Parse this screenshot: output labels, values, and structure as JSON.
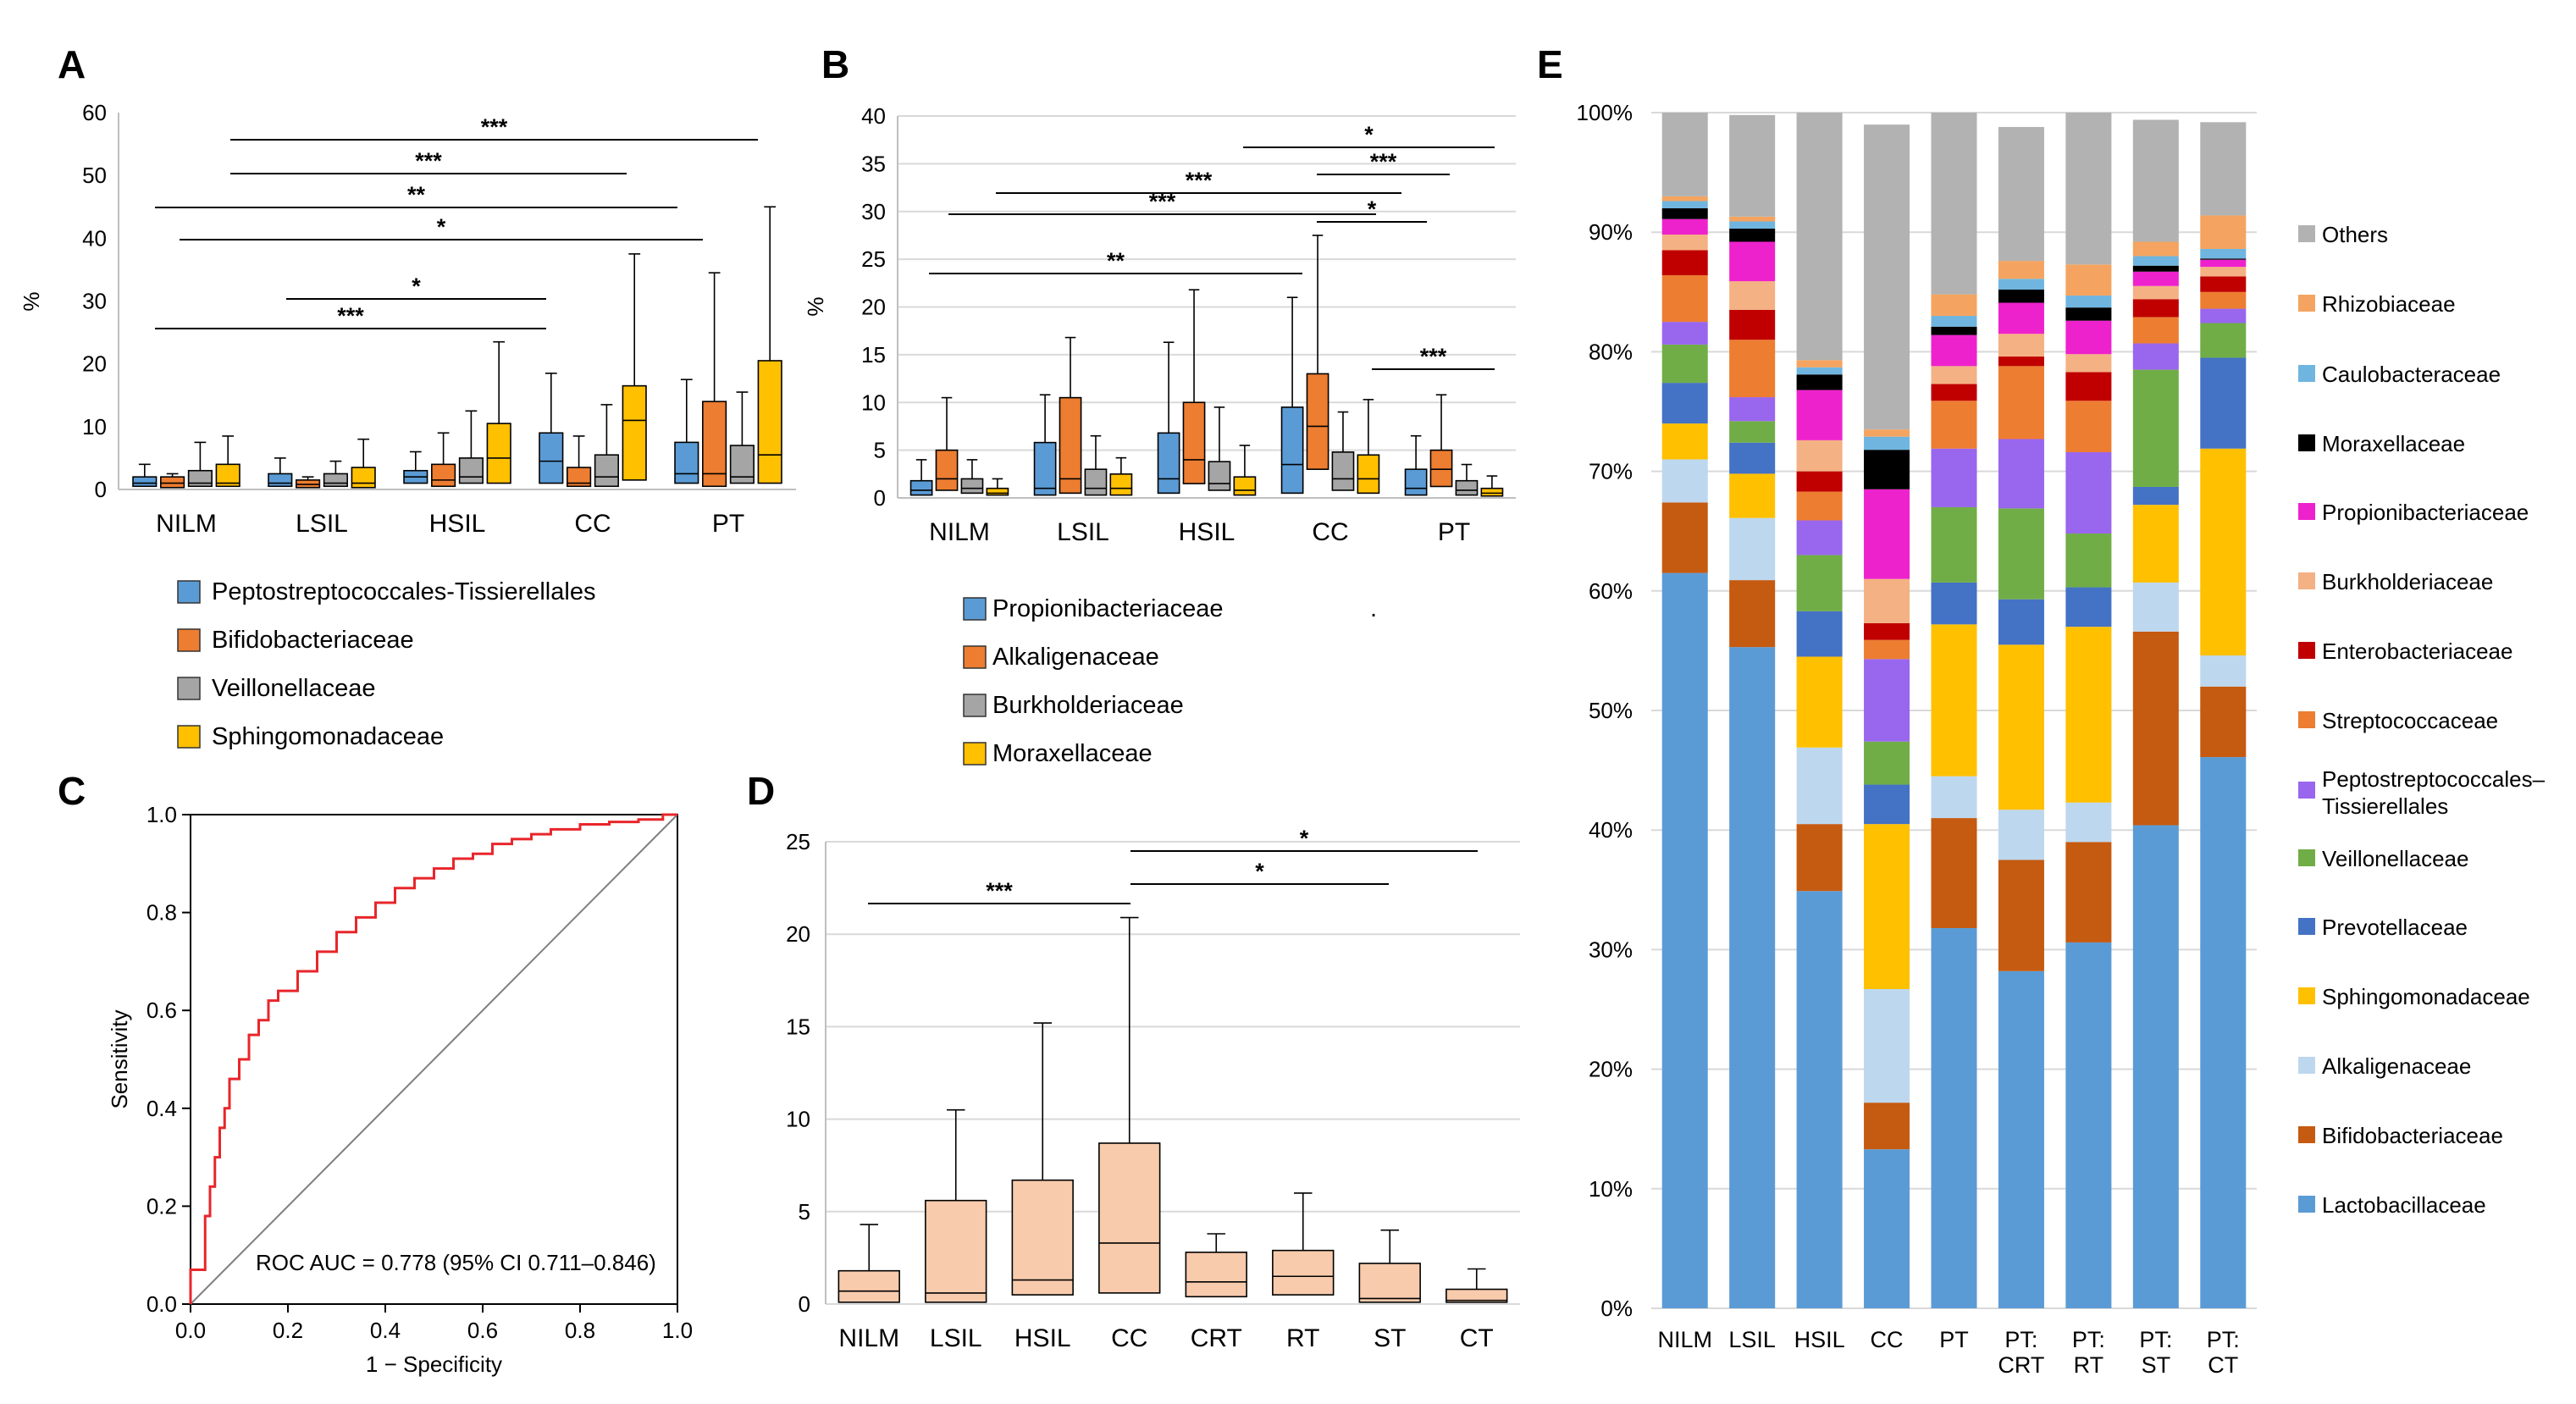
{
  "chart_data": [
    {
      "panel": "A",
      "type": "boxplot",
      "ylabel": "%",
      "ylim": [
        0,
        60
      ],
      "yticks": [
        0,
        10,
        20,
        30,
        40,
        50,
        60
      ],
      "categories": [
        "NILM",
        "LSIL",
        "HSIL",
        "CC",
        "PT"
      ],
      "series": [
        {
          "name": "Peptostreptococcales-Tissierellales",
          "color": "#5b9bd5",
          "boxes": [
            [
              0,
              0.5,
              1,
              2,
              4
            ],
            [
              0,
              0.5,
              1,
              2.5,
              5
            ],
            [
              0,
              1,
              2,
              3,
              6
            ],
            [
              0,
              1,
              4.5,
              9,
              18.5
            ],
            [
              0,
              1,
              2.5,
              7.5,
              17.5
            ]
          ]
        },
        {
          "name": "Bifidobacteriaceae",
          "color": "#ed7d31",
          "boxes": [
            [
              0,
              0.3,
              1,
              2,
              2.5
            ],
            [
              0,
              0.3,
              0.8,
              1.5,
              2
            ],
            [
              0,
              0.5,
              1.5,
              4,
              9
            ],
            [
              0,
              0.5,
              1,
              3.5,
              8.5
            ],
            [
              0,
              0.5,
              2.5,
              14,
              34.5
            ]
          ]
        },
        {
          "name": "Veillonellaceae",
          "color": "#a5a5a5",
          "boxes": [
            [
              0,
              0.5,
              1,
              3,
              7.5
            ],
            [
              0,
              0.5,
              1,
              2.5,
              4.5
            ],
            [
              0,
              1,
              2,
              5,
              12.5
            ],
            [
              0,
              0.5,
              2,
              5.5,
              13.5
            ],
            [
              0,
              1,
              2,
              7,
              15.5
            ]
          ]
        },
        {
          "name": "Sphingomonadaceae",
          "color": "#ffc000",
          "boxes": [
            [
              0,
              0.5,
              1,
              4,
              8.5
            ],
            [
              0,
              0.3,
              1,
              3.5,
              8
            ],
            [
              0,
              1,
              5,
              10.5,
              23.5
            ],
            [
              0,
              1.5,
              11,
              16.5,
              37.5
            ],
            [
              0,
              1,
              5.5,
              20.5,
              45
            ]
          ]
        }
      ],
      "significance": [
        {
          "label": "***",
          "from": "NILM",
          "to": "PT"
        },
        {
          "label": "***",
          "from": "NILM",
          "to": "CC"
        },
        {
          "label": "**",
          "from": "NILM",
          "to": "PT"
        },
        {
          "label": "*",
          "from": "NILM",
          "to": "PT"
        },
        {
          "label": "*",
          "from": "LSIL",
          "to": "CC"
        },
        {
          "label": "***",
          "from": "NILM",
          "to": "CC"
        }
      ]
    },
    {
      "panel": "B",
      "type": "boxplot",
      "ylabel": "%",
      "ylim": [
        0,
        40
      ],
      "yticks": [
        0,
        5,
        10,
        15,
        20,
        25,
        30,
        35,
        40
      ],
      "categories": [
        "NILM",
        "LSIL",
        "HSIL",
        "CC",
        "PT"
      ],
      "series": [
        {
          "name": "Propionibacteriaceae",
          "color": "#5b9bd5",
          "boxes": [
            [
              0,
              0.3,
              0.8,
              1.8,
              4
            ],
            [
              0,
              0.3,
              1,
              5.8,
              10.8
            ],
            [
              0,
              0.5,
              2,
              6.8,
              16.3
            ],
            [
              0,
              0.5,
              3.5,
              9.5,
              21
            ],
            [
              0,
              0.3,
              1,
              3,
              6.5
            ]
          ]
        },
        {
          "name": "Alkaligenaceae",
          "color": "#ed7d31",
          "boxes": [
            [
              0,
              0.8,
              2,
              5,
              10.5
            ],
            [
              0,
              0.5,
              2,
              10.5,
              16.8
            ],
            [
              0,
              1.5,
              4,
              10,
              21.8
            ],
            [
              0,
              3,
              7.5,
              13,
              27.5
            ],
            [
              0,
              1.2,
              3,
              5,
              10.8
            ]
          ]
        },
        {
          "name": "Burkholderiaceae",
          "color": "#a5a5a5",
          "boxes": [
            [
              0,
              0.5,
              1,
              2,
              4
            ],
            [
              0,
              0.3,
              1,
              3,
              6.5
            ],
            [
              0,
              0.8,
              1.5,
              3.8,
              9.5
            ],
            [
              0,
              0.8,
              2,
              4.8,
              9
            ],
            [
              0,
              0.3,
              0.8,
              1.8,
              3.5
            ]
          ]
        },
        {
          "name": "Moraxellaceae",
          "color": "#ffc000",
          "boxes": [
            [
              0,
              0.3,
              0.5,
              1,
              2
            ],
            [
              0,
              0.3,
              1,
              2.5,
              4.2
            ],
            [
              0,
              0.3,
              0.8,
              2.2,
              5.5
            ],
            [
              0,
              0.5,
              2,
              4.5,
              10.3
            ],
            [
              0,
              0.2,
              0.5,
              1,
              2.3
            ]
          ]
        }
      ],
      "significance": [
        {
          "label": "*",
          "from": "CC",
          "to": "PT"
        },
        {
          "label": "***",
          "from": "CC",
          "to": "PT"
        },
        {
          "label": "***",
          "from": "LSIL",
          "to": "CC"
        },
        {
          "label": "***",
          "from": "NILM",
          "to": "CC"
        },
        {
          "label": "*",
          "from": "CC",
          "to": "PT"
        },
        {
          "label": "**",
          "from": "NILM",
          "to": "CC"
        },
        {
          "label": "***",
          "from": "CC",
          "to": "PT"
        }
      ]
    },
    {
      "panel": "C",
      "type": "line",
      "xlabel": "1 − Specificity",
      "ylabel": "Sensitivity",
      "xlim": [
        0,
        1
      ],
      "ylim": [
        0,
        1
      ],
      "xticks": [
        "0.0",
        "0.2",
        "0.4",
        "0.6",
        "0.8",
        "1.0"
      ],
      "yticks": [
        "0.0",
        "0.2",
        "0.4",
        "0.6",
        "0.8",
        "1.0"
      ],
      "annotation": "ROC AUC = 0.778 (95% CI 0.711–0.846)",
      "series": [
        {
          "name": "ROC",
          "color": "#e8262b",
          "x": [
            0,
            0,
            0.03,
            0.03,
            0.04,
            0.04,
            0.05,
            0.05,
            0.06,
            0.06,
            0.07,
            0.07,
            0.08,
            0.08,
            0.1,
            0.1,
            0.12,
            0.12,
            0.14,
            0.14,
            0.16,
            0.16,
            0.18,
            0.18,
            0.22,
            0.22,
            0.26,
            0.26,
            0.3,
            0.3,
            0.34,
            0.34,
            0.38,
            0.38,
            0.42,
            0.42,
            0.46,
            0.46,
            0.5,
            0.5,
            0.54,
            0.54,
            0.58,
            0.58,
            0.62,
            0.62,
            0.66,
            0.66,
            0.7,
            0.7,
            0.74,
            0.74,
            0.8,
            0.8,
            0.86,
            0.86,
            0.92,
            0.92,
            0.97,
            0.97,
            1.0
          ],
          "y": [
            0,
            0.07,
            0.07,
            0.18,
            0.18,
            0.24,
            0.24,
            0.3,
            0.3,
            0.36,
            0.36,
            0.4,
            0.4,
            0.46,
            0.46,
            0.5,
            0.5,
            0.55,
            0.55,
            0.58,
            0.58,
            0.62,
            0.62,
            0.64,
            0.64,
            0.68,
            0.68,
            0.72,
            0.72,
            0.76,
            0.76,
            0.79,
            0.79,
            0.82,
            0.82,
            0.85,
            0.85,
            0.87,
            0.87,
            0.89,
            0.89,
            0.91,
            0.91,
            0.92,
            0.92,
            0.94,
            0.94,
            0.95,
            0.95,
            0.96,
            0.96,
            0.97,
            0.97,
            0.98,
            0.98,
            0.985,
            0.985,
            0.99,
            0.99,
            1.0,
            1.0
          ]
        },
        {
          "name": "Reference",
          "color": "#7f7f7f",
          "x": [
            0,
            1
          ],
          "y": [
            0,
            1
          ]
        }
      ]
    },
    {
      "panel": "D",
      "type": "boxplot",
      "ylim": [
        0,
        25
      ],
      "yticks": [
        0,
        5,
        10,
        15,
        20,
        25
      ],
      "categories": [
        "NILM",
        "LSIL",
        "HSIL",
        "CC",
        "CRT",
        "RT",
        "ST",
        "CT"
      ],
      "series": [
        {
          "name": "Moraxellaceae",
          "color": "#f8cbad",
          "boxes": [
            [
              0,
              0.1,
              0.7,
              1.8,
              4.3
            ],
            [
              0,
              0.1,
              0.6,
              5.6,
              10.5
            ],
            [
              0,
              0.5,
              1.3,
              6.7,
              15.2
            ],
            [
              0,
              0.6,
              3.3,
              8.7,
              20.9
            ],
            [
              0,
              0.4,
              1.2,
              2.8,
              3.8
            ],
            [
              0,
              0.5,
              1.5,
              2.9,
              6
            ],
            [
              0,
              0.1,
              0.3,
              2.2,
              4
            ],
            [
              0,
              0.1,
              0.2,
              0.8,
              1.9
            ]
          ]
        }
      ],
      "significance": [
        {
          "label": "***",
          "from": "NILM",
          "to": "CC"
        },
        {
          "label": "*",
          "from": "CC",
          "to": "ST"
        },
        {
          "label": "*",
          "from": "CC",
          "to": "CT"
        }
      ]
    },
    {
      "panel": "E",
      "type": "stacked_bar",
      "ylim": [
        0,
        100
      ],
      "yticks": [
        "0%",
        "10%",
        "20%",
        "30%",
        "40%",
        "50%",
        "60%",
        "70%",
        "80%",
        "90%",
        "100%"
      ],
      "categories": [
        [
          "NILM"
        ],
        [
          "LSIL"
        ],
        [
          "HSIL"
        ],
        [
          "CC"
        ],
        [
          "PT"
        ],
        [
          "PT:",
          "CRT"
        ],
        [
          "PT:",
          "RT"
        ],
        [
          "PT:",
          "ST"
        ],
        [
          "PT:",
          "CT"
        ]
      ],
      "series": [
        {
          "name": "Lactobacillaceae",
          "color": "#5b9bd5",
          "values": [
            61.5,
            55.3,
            34.9,
            13.3,
            31.8,
            28.2,
            30.6,
            40.4,
            46.1
          ]
        },
        {
          "name": "Bifidobacteriaceae",
          "color": "#c55a11",
          "values": [
            5.9,
            5.6,
            5.6,
            3.9,
            9.2,
            9.3,
            8.4,
            16.2,
            5.9
          ]
        },
        {
          "name": "Alkaligenaceae",
          "color": "#bdd7ee",
          "values": [
            3.6,
            5.2,
            6.4,
            9.5,
            3.5,
            4.2,
            3.3,
            4.1,
            2.6
          ]
        },
        {
          "name": "Sphingomonadaceae",
          "color": "#ffc000",
          "values": [
            3,
            3.7,
            7.6,
            13.8,
            12.7,
            13.8,
            14.7,
            6.5,
            17.3
          ]
        },
        {
          "name": "Prevotellaceae",
          "color": "#4472c4",
          "values": [
            3.4,
            2.6,
            3.8,
            3.3,
            3.5,
            3.8,
            3.3,
            1.5,
            7.6
          ]
        },
        {
          "name": "Veillonellaceae",
          "color": "#70ad47",
          "values": [
            3.2,
            1.8,
            4.7,
            3.6,
            6.3,
            7.6,
            4.5,
            9.8,
            2.9
          ]
        },
        {
          "name": "Peptostreptococcales–Tissierellales",
          "color": "#9966ee",
          "values": [
            1.9,
            2,
            2.9,
            6.9,
            4.9,
            5.8,
            6.8,
            2.2,
            1.2
          ]
        },
        {
          "name": "Streptococcaceae",
          "color": "#ed7d31",
          "values": [
            3.9,
            4.8,
            2.4,
            1.6,
            4,
            6.1,
            4.3,
            2.2,
            1.4
          ]
        },
        {
          "name": "Enterobacteriaceae",
          "color": "#c00000",
          "values": [
            2.1,
            2.5,
            1.7,
            1.4,
            1.4,
            0.8,
            2.4,
            1.5,
            1.3
          ]
        },
        {
          "name": "Burkholderiaceae",
          "color": "#f4b183",
          "values": [
            1.3,
            2.4,
            2.6,
            3.7,
            1.5,
            1.9,
            1.5,
            1.1,
            0.8
          ]
        },
        {
          "name": "Propionibacteriaceae",
          "color": "#ee22cc",
          "values": [
            1.3,
            3.3,
            4.2,
            7.5,
            2.6,
            2.6,
            2.8,
            1.2,
            0.6
          ]
        },
        {
          "name": "Moraxellaceae",
          "color": "#000000",
          "values": [
            0.9,
            1.1,
            1.3,
            3.3,
            0.7,
            1.1,
            1.1,
            0.5,
            0.1
          ]
        },
        {
          "name": "Caulobacteraceae",
          "color": "#6fb5e0",
          "values": [
            0.6,
            0.6,
            0.6,
            1.1,
            0.9,
            0.9,
            1,
            0.8,
            0.8
          ]
        },
        {
          "name": "Rhizobiaceae",
          "color": "#f4a460",
          "values": [
            0.4,
            0.4,
            0.6,
            0.6,
            1.8,
            1.5,
            2.6,
            1.2,
            2.8
          ]
        },
        {
          "name": "Others",
          "color": "#b2b2b2",
          "values": [
            7,
            8.5,
            20.7,
            25.5,
            15.2,
            11.2,
            12.7,
            10.2,
            7.8
          ]
        }
      ],
      "legend_order": [
        "Others",
        "Rhizobiaceae",
        "Caulobacteraceae",
        "Moraxellaceae",
        "Propionibacteriaceae",
        "Burkholderiaceae",
        "Enterobacteriaceae",
        "Streptococcaceae",
        "Peptostreptococcales–Tissierellales",
        "Veillonellaceae",
        "Prevotellaceae",
        "Sphingomonadaceae",
        "Alkaligenaceae",
        "Bifidobacteriaceae",
        "Lactobacillaceae"
      ]
    }
  ],
  "stray_mark": "."
}
